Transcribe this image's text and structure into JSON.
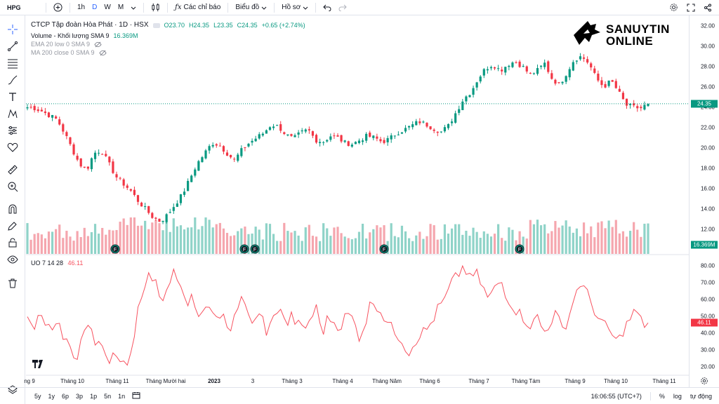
{
  "symbol": "HPG",
  "toolbar": {
    "intervals": [
      "1h",
      "D",
      "W",
      "M"
    ],
    "active_interval": "D",
    "indicators_label": "Các chỉ báo",
    "layout_label": "Biểu đồ",
    "profile_label": "Hồ sơ"
  },
  "legend": {
    "title": "CTCP Tập đoàn Hòa Phát · 1D · HSX",
    "ohlc": {
      "o": "O23.70",
      "h": "H24.35",
      "l": "L23.35",
      "c": "C24.35",
      "chg": "+0.65 (+2.74%)"
    },
    "volume_label": "Volume - Khối lượng SMA 9",
    "volume_value": "16.369M",
    "ema_label": "EMA 20 low 0 SMA 9",
    "ma_label": "MA 200 close 0 SMA 9",
    "uo_label": "UO 7 14 28",
    "uo_value": "46.11"
  },
  "logo": {
    "line1": "SANUYTIN",
    "line2": "ONLINE"
  },
  "colors": {
    "up": "#089981",
    "down": "#f23645",
    "uo": "#f7525f",
    "vol_up": "#8fd3c8",
    "vol_down": "#f5a6ae"
  },
  "price_axis": [
    "32.00",
    "30.00",
    "28.00",
    "26.00",
    "24.00",
    "22.00",
    "20.00",
    "18.00",
    "16.00",
    "14.00",
    "12.00"
  ],
  "price_tag": "24.35",
  "volume_tag": "16.369M",
  "uo_axis": [
    "80.00",
    "70.00",
    "60.00",
    "50.00",
    "40.00",
    "30.00",
    "20.00"
  ],
  "uo_tag": "46.11",
  "time_axis": [
    "ng 9",
    "Tháng 10",
    "Tháng 11",
    "Tháng Mười hai",
    "2023",
    "3",
    "Tháng 3",
    "Tháng 4",
    "Tháng Năm",
    "Tháng 6",
    "Tháng 7",
    "Tháng Tám",
    "Tháng 9",
    "Tháng 10",
    "Tháng 11"
  ],
  "event_marker": "F",
  "bottom": {
    "ranges": [
      "5y",
      "1y",
      "6p",
      "3p",
      "1p",
      "5n",
      "1n"
    ],
    "time": "16:06:55 (UTC+7)",
    "pct": "%",
    "log": "log",
    "auto": "tự động"
  },
  "chart_data": {
    "type": "candlestick",
    "closes_approx": [
      24.0,
      23.9,
      23.6,
      23.2,
      22.8,
      21.5,
      20.0,
      18.5,
      17.8,
      19.5,
      19.8,
      18.5,
      17.2,
      16.5,
      15.8,
      14.8,
      14.0,
      13.2,
      12.8,
      13.5,
      14.5,
      15.5,
      17.0,
      18.5,
      19.5,
      20.5,
      20.3,
      19.5,
      18.8,
      19.8,
      20.5,
      21.0,
      21.5,
      22.3,
      22.1,
      21.3,
      20.9,
      21.5,
      21.8,
      20.8,
      20.6,
      21.2,
      21.0,
      20.5,
      20.4,
      20.8,
      21.2,
      21.0,
      20.6,
      20.9,
      21.5,
      21.8,
      22.2,
      22.6,
      22.3,
      21.9,
      21.6,
      22.2,
      23.5,
      24.8,
      25.5,
      26.8,
      27.8,
      28.2,
      27.6,
      28.2,
      28.5,
      28.0,
      27.2,
      27.6,
      28.3,
      26.8,
      26.2,
      27.4,
      28.7,
      29.0,
      28.3,
      26.8,
      26.0,
      26.6,
      25.5,
      24.2,
      24.0,
      23.9,
      24.35
    ],
    "price_ylim": [
      11,
      33
    ],
    "uo_ylim": [
      15,
      85
    ]
  }
}
